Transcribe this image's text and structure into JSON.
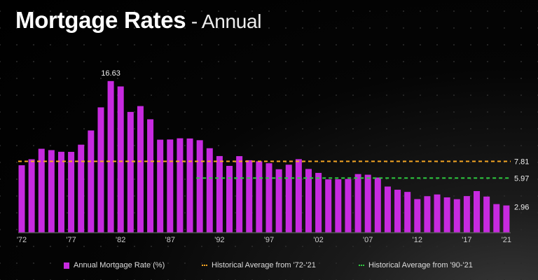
{
  "chart_data": {
    "type": "bar",
    "title": "Mortgage Rates",
    "subtitle": "Annual",
    "categories": [
      "'72",
      "'73",
      "'74",
      "'75",
      "'76",
      "'77",
      "'78",
      "'79",
      "'80",
      "'81",
      "'82",
      "'83",
      "'84",
      "'85",
      "'86",
      "'87",
      "'88",
      "'89",
      "'90",
      "'91",
      "'92",
      "'93",
      "'94",
      "'95",
      "'96",
      "'97",
      "'98",
      "'99",
      "'00",
      "'01",
      "'02",
      "'03",
      "'04",
      "'05",
      "'06",
      "'07",
      "'08",
      "'09",
      "'10",
      "'11",
      "'12",
      "'13",
      "'14",
      "'15",
      "'16",
      "'17",
      "'18",
      "'19",
      "'20",
      "'21"
    ],
    "x_tick_labels": [
      "'72",
      "'77",
      "'82",
      "'87",
      "'92",
      "'97",
      "'02",
      "'07",
      "'12",
      "'17",
      "'21"
    ],
    "series": [
      {
        "name": "Annual Mortgage Rate (%)",
        "color": "#c72ae0",
        "values": [
          7.38,
          8.04,
          9.19,
          9.04,
          8.86,
          8.85,
          9.64,
          11.2,
          13.74,
          16.63,
          16.04,
          13.24,
          13.88,
          12.43,
          10.19,
          10.21,
          10.34,
          10.32,
          10.13,
          9.25,
          8.39,
          7.31,
          8.38,
          7.93,
          7.81,
          7.6,
          6.94,
          7.44,
          8.05,
          6.97,
          6.54,
          5.83,
          5.84,
          5.87,
          6.41,
          6.34,
          6.03,
          5.04,
          4.69,
          4.45,
          3.66,
          3.98,
          4.17,
          3.85,
          3.65,
          3.99,
          4.54,
          3.94,
          3.11,
          2.96
        ]
      }
    ],
    "reference_lines": [
      {
        "name": "Historical Average from '72-'21",
        "value": 7.81,
        "label": "7.81",
        "from": "'72",
        "to": "'21",
        "color": "#f5a623",
        "style": "dashed"
      },
      {
        "name": "Historical Average from '90-'21",
        "value": 5.97,
        "label": "5.97",
        "from": "'90",
        "to": "'21",
        "color": "#2ecc40",
        "style": "dashed"
      }
    ],
    "data_labels": [
      {
        "category": "'81",
        "text": "16.63"
      },
      {
        "category": "'21",
        "text": "2.96"
      }
    ],
    "ylim": [
      0,
      17
    ],
    "xlabel": "",
    "ylabel": "",
    "grid": false,
    "legend": "bottom"
  }
}
